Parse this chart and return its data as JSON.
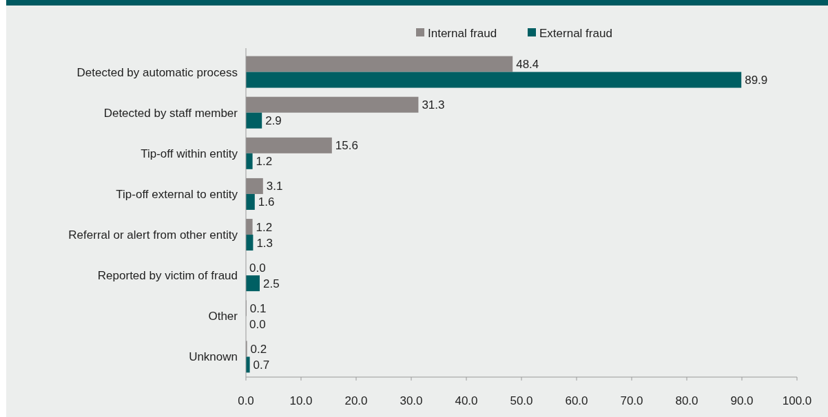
{
  "chart_data": {
    "type": "bar",
    "orientation": "horizontal",
    "categories": [
      "Detected by automatic process",
      "Detected by staff member",
      "Tip-off within entity",
      "Tip-off external to entity",
      "Referral or alert from other entity",
      "Reported by victim of fraud",
      "Other",
      "Unknown"
    ],
    "series": [
      {
        "name": "Internal fraud",
        "color": "#8c8685",
        "values": [
          48.4,
          31.3,
          15.6,
          3.1,
          1.2,
          0,
          0.1,
          0.2
        ],
        "value_labels": [
          "48.4",
          "31.3",
          "15.6",
          "3.1",
          "1.2",
          "0.0",
          "0.1",
          "0.2"
        ]
      },
      {
        "name": "External fraud",
        "color": "#005f63",
        "values": [
          89.9,
          2.9,
          1.2,
          1.6,
          1.3,
          2.5,
          0,
          0.7
        ],
        "value_labels": [
          "89.9",
          "2.9",
          "1.2",
          "1.6",
          "1.3",
          "2.5",
          "0.0",
          "0.7"
        ]
      }
    ],
    "xlim": [
      0,
      100
    ],
    "xticks": [
      {
        "value": 0,
        "label": "0.0"
      },
      {
        "value": 10,
        "label": "10.0"
      },
      {
        "value": 20,
        "label": "20.0"
      },
      {
        "value": 30,
        "label": "30.0"
      },
      {
        "value": 40,
        "label": "40.0"
      },
      {
        "value": 50,
        "label": "50.0"
      },
      {
        "value": 60,
        "label": "60.0"
      },
      {
        "value": 70,
        "label": "70.0"
      },
      {
        "value": 80,
        "label": "80.0"
      },
      {
        "value": 90,
        "label": "90.0"
      },
      {
        "value": 100,
        "label": "100.0"
      }
    ],
    "legend": "top",
    "grid": false
  }
}
